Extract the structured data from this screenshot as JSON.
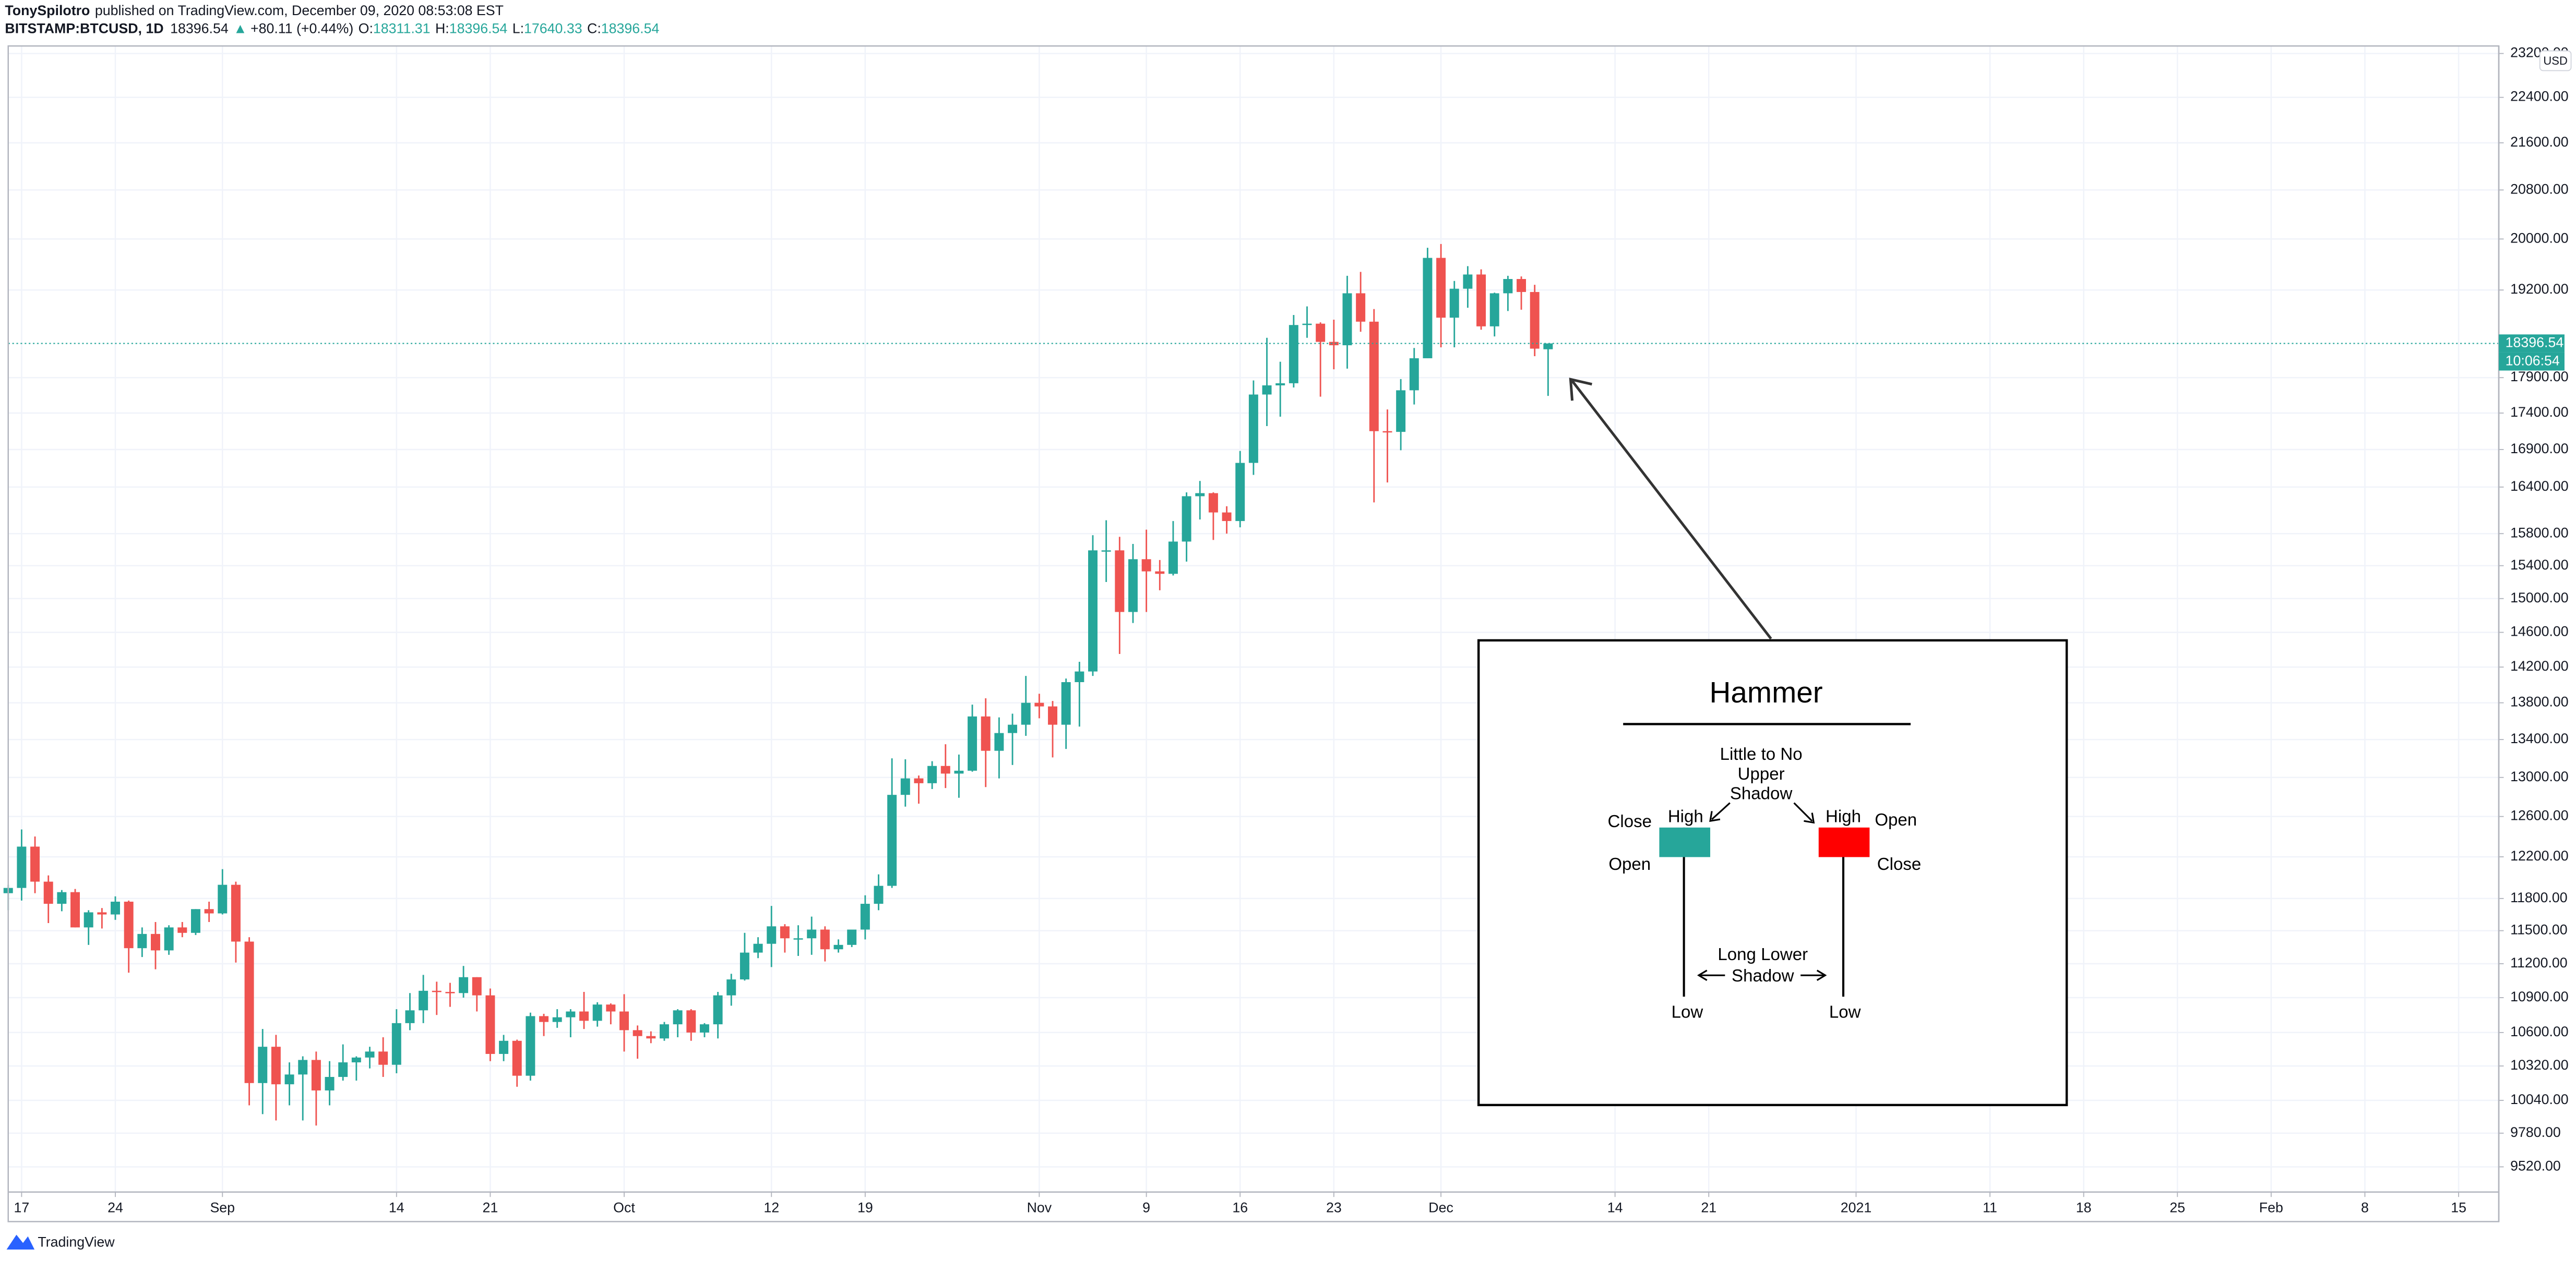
{
  "header": {
    "author": "TonySpilotro",
    "published": "published on TradingView.com, December 09, 2020 08:53:08 EST",
    "symbol": "BITSTAMP:BTCUSD, 1D",
    "arrow": "▲",
    "change": "+80.11 (+0.44%)",
    "o": "O:",
    "h": "H:",
    "l": "L:",
    "c": "C:",
    "countdown": "10:06:54",
    "currency": "USD",
    "brand": "TradingView"
  },
  "chart_data": {
    "type": "candlestick",
    "log_scale": true,
    "grid": true,
    "up_color": "#26a69a",
    "down_color": "#ef5350",
    "x": [
      "2020-08-16",
      "2020-08-17",
      "2020-08-18",
      "2020-08-19",
      "2020-08-20",
      "2020-08-21",
      "2020-08-22",
      "2020-08-23",
      "2020-08-24",
      "2020-08-25",
      "2020-08-26",
      "2020-08-27",
      "2020-08-28",
      "2020-08-29",
      "2020-08-30",
      "2020-08-31",
      "2020-09-01",
      "2020-09-02",
      "2020-09-03",
      "2020-09-04",
      "2020-09-05",
      "2020-09-06",
      "2020-09-07",
      "2020-09-08",
      "2020-09-09",
      "2020-09-10",
      "2020-09-11",
      "2020-09-12",
      "2020-09-13",
      "2020-09-14",
      "2020-09-15",
      "2020-09-16",
      "2020-09-17",
      "2020-09-18",
      "2020-09-19",
      "2020-09-20",
      "2020-09-21",
      "2020-09-22",
      "2020-09-23",
      "2020-09-24",
      "2020-09-25",
      "2020-09-26",
      "2020-09-27",
      "2020-09-28",
      "2020-09-29",
      "2020-09-30",
      "2020-10-01",
      "2020-10-02",
      "2020-10-03",
      "2020-10-04",
      "2020-10-05",
      "2020-10-06",
      "2020-10-07",
      "2020-10-08",
      "2020-10-09",
      "2020-10-10",
      "2020-10-11",
      "2020-10-12",
      "2020-10-13",
      "2020-10-14",
      "2020-10-15",
      "2020-10-16",
      "2020-10-17",
      "2020-10-18",
      "2020-10-19",
      "2020-10-20",
      "2020-10-21",
      "2020-10-22",
      "2020-10-23",
      "2020-10-24",
      "2020-10-25",
      "2020-10-26",
      "2020-10-27",
      "2020-10-28",
      "2020-10-29",
      "2020-10-30",
      "2020-10-31",
      "2020-11-01",
      "2020-11-02",
      "2020-11-03",
      "2020-11-04",
      "2020-11-05",
      "2020-11-06",
      "2020-11-07",
      "2020-11-08",
      "2020-11-09",
      "2020-11-10",
      "2020-11-11",
      "2020-11-12",
      "2020-11-13",
      "2020-11-14",
      "2020-11-15",
      "2020-11-16",
      "2020-11-17",
      "2020-11-18",
      "2020-11-19",
      "2020-11-20",
      "2020-11-21",
      "2020-11-22",
      "2020-11-23",
      "2020-11-24",
      "2020-11-25",
      "2020-11-26",
      "2020-11-27",
      "2020-11-28",
      "2020-11-29",
      "2020-11-30",
      "2020-12-01",
      "2020-12-02",
      "2020-12-03",
      "2020-12-04",
      "2020-12-05",
      "2020-12-06",
      "2020-12-07",
      "2020-12-08",
      "2020-12-09"
    ],
    "open": [
      11850,
      11900,
      12300,
      11960,
      11750,
      11860,
      11530,
      11670,
      11650,
      11770,
      11340,
      11470,
      11320,
      11530,
      11480,
      11700,
      11660,
      11930,
      11400,
      10180,
      10480,
      10170,
      10250,
      10370,
      10120,
      10230,
      10350,
      10390,
      10440,
      10330,
      10680,
      10790,
      10960,
      10950,
      10940,
      11080,
      10920,
      10420,
      10530,
      10240,
      10740,
      10690,
      10730,
      10780,
      10700,
      10840,
      10780,
      10620,
      10570,
      10550,
      10670,
      10790,
      10600,
      10670,
      10920,
      11060,
      11300,
      11380,
      11540,
      11430,
      11430,
      11510,
      11330,
      11370,
      11510,
      11750,
      11920,
      12820,
      12990,
      12940,
      13120,
      13040,
      13070,
      13650,
      13280,
      13470,
      13560,
      13800,
      13760,
      13560,
      14030,
      14150,
      15590,
      15590,
      14840,
      15480,
      15330,
      15300,
      15700,
      16280,
      16320,
      16070,
      15960,
      16720,
      17660,
      17790,
      17820,
      18670,
      18690,
      18420,
      18370,
      19150,
      18720,
      17150,
      17140,
      17720,
      18180,
      19700,
      18780,
      19220,
      19440,
      18650,
      19150,
      19370,
      19170,
      18311.31
    ],
    "high": [
      11930,
      12470,
      12400,
      12020,
      11880,
      11890,
      11690,
      11710,
      11820,
      11780,
      11530,
      11580,
      11550,
      11580,
      11700,
      11770,
      12080,
      11960,
      11440,
      10630,
      10580,
      10350,
      10400,
      10440,
      10360,
      10500,
      10400,
      10480,
      10560,
      10800,
      10940,
      11100,
      11040,
      11030,
      11180,
      11080,
      10980,
      10580,
      10540,
      10770,
      10760,
      10800,
      10800,
      10950,
      10860,
      10850,
      10930,
      10660,
      10610,
      10690,
      10800,
      10800,
      10680,
      10950,
      11110,
      11480,
      11440,
      11730,
      11560,
      11550,
      11630,
      11540,
      11420,
      11500,
      11830,
      12030,
      13200,
      13190,
      13020,
      13170,
      13350,
      13240,
      13780,
      13850,
      13640,
      13680,
      14100,
      13900,
      13820,
      14070,
      14260,
      15780,
      15970,
      15760,
      15670,
      15850,
      15470,
      15960,
      16330,
      16480,
      16330,
      16150,
      16880,
      17860,
      18480,
      18130,
      18820,
      18950,
      18710,
      18750,
      19420,
      19480,
      18910,
      17450,
      17880,
      18330,
      19860,
      19920,
      19340,
      19570,
      19520,
      19160,
      19420,
      19410,
      19280,
      18396.54
    ],
    "low": [
      11690,
      11780,
      11850,
      11570,
      11680,
      11530,
      11370,
      11520,
      11600,
      11120,
      11260,
      11150,
      11280,
      11440,
      11460,
      11580,
      11650,
      11210,
      10000,
      9930,
      9880,
      10000,
      9880,
      9840,
      10000,
      10200,
      10200,
      10300,
      10230,
      10260,
      10620,
      10680,
      10750,
      10820,
      10900,
      10780,
      10360,
      10360,
      10150,
      10200,
      10570,
      10640,
      10560,
      10630,
      10650,
      10670,
      10440,
      10380,
      10510,
      10530,
      10560,
      10530,
      10560,
      10550,
      10830,
      11050,
      11250,
      11170,
      11300,
      11270,
      11280,
      11220,
      11300,
      11350,
      11420,
      11690,
      11900,
      12700,
      12730,
      12880,
      12890,
      12790,
      13060,
      12900,
      12990,
      13130,
      13440,
      13630,
      13210,
      13300,
      13540,
      14100,
      15200,
      14350,
      14710,
      14840,
      15100,
      15280,
      15450,
      15980,
      15720,
      15800,
      15880,
      16560,
      17220,
      17350,
      17760,
      18480,
      17630,
      18020,
      18030,
      18570,
      16200,
      16460,
      16890,
      17520,
      18180,
      18340,
      18340,
      18930,
      18600,
      18500,
      18880,
      18900,
      18210,
      17640.33
    ],
    "close": [
      11900,
      12300,
      11960,
      11750,
      11860,
      11530,
      11670,
      11650,
      11770,
      11340,
      11470,
      11320,
      11530,
      11480,
      11700,
      11660,
      11930,
      11400,
      10180,
      10480,
      10170,
      10250,
      10370,
      10120,
      10230,
      10350,
      10390,
      10440,
      10330,
      10680,
      10790,
      10960,
      10950,
      10940,
      11080,
      10920,
      10420,
      10530,
      10240,
      10740,
      10690,
      10730,
      10780,
      10700,
      10840,
      10780,
      10620,
      10570,
      10550,
      10670,
      10790,
      10600,
      10670,
      10920,
      11060,
      11300,
      11380,
      11540,
      11430,
      11430,
      11510,
      11330,
      11370,
      11510,
      11750,
      11920,
      12820,
      12990,
      12940,
      13120,
      13040,
      13070,
      13650,
      13280,
      13470,
      13560,
      13800,
      13760,
      13560,
      14030,
      14150,
      15590,
      15590,
      14840,
      15480,
      15330,
      15300,
      15700,
      16280,
      16320,
      16070,
      15960,
      16720,
      17660,
      17790,
      17820,
      18670,
      18690,
      18420,
      18370,
      19150,
      18720,
      17150,
      17140,
      17720,
      18180,
      19700,
      18780,
      19220,
      19440,
      18650,
      19150,
      19370,
      19170,
      18320,
      18396.54
    ],
    "xlim": [
      "2020-08-16",
      "2021-02-18"
    ],
    "xticks": [
      {
        "value": "2020-08-17",
        "label": "17"
      },
      {
        "value": "2020-08-24",
        "label": "24"
      },
      {
        "value": "2020-09-01",
        "label": "Sep"
      },
      {
        "value": "2020-09-14",
        "label": "14"
      },
      {
        "value": "2020-09-21",
        "label": "21"
      },
      {
        "value": "2020-10-01",
        "label": "Oct"
      },
      {
        "value": "2020-10-12",
        "label": "12"
      },
      {
        "value": "2020-10-19",
        "label": "19"
      },
      {
        "value": "2020-11-01",
        "label": "Nov"
      },
      {
        "value": "2020-11-09",
        "label": "9"
      },
      {
        "value": "2020-11-16",
        "label": "16"
      },
      {
        "value": "2020-11-23",
        "label": "23"
      },
      {
        "value": "2020-12-01",
        "label": "Dec"
      },
      {
        "value": "2020-12-14",
        "label": "14"
      },
      {
        "value": "2020-12-21",
        "label": "21"
      },
      {
        "value": "2021-01-01",
        "label": "2021"
      },
      {
        "value": "2021-01-11",
        "label": "11"
      },
      {
        "value": "2021-01-18",
        "label": "18"
      },
      {
        "value": "2021-01-25",
        "label": "25"
      },
      {
        "value": "2021-02-01",
        "label": "Feb"
      },
      {
        "value": "2021-02-08",
        "label": "8"
      },
      {
        "value": "2021-02-15",
        "label": "15"
      }
    ],
    "ylim": [
      9330,
      23340
    ],
    "yticks": [
      {
        "value": 9520,
        "label": "9520.00"
      },
      {
        "value": 9780,
        "label": "9780.00"
      },
      {
        "value": 10040,
        "label": "10040.00"
      },
      {
        "value": 10320,
        "label": "10320.00"
      },
      {
        "value": 10600,
        "label": "10600.00"
      },
      {
        "value": 10900,
        "label": "10900.00"
      },
      {
        "value": 11200,
        "label": "11200.00"
      },
      {
        "value": 11500,
        "label": "11500.00"
      },
      {
        "value": 11800,
        "label": "11800.00"
      },
      {
        "value": 12200,
        "label": "12200.00"
      },
      {
        "value": 12600,
        "label": "12600.00"
      },
      {
        "value": 13000,
        "label": "13000.00"
      },
      {
        "value": 13400,
        "label": "13400.00"
      },
      {
        "value": 13800,
        "label": "13800.00"
      },
      {
        "value": 14200,
        "label": "14200.00"
      },
      {
        "value": 14600,
        "label": "14600.00"
      },
      {
        "value": 15000,
        "label": "15000.00"
      },
      {
        "value": 15400,
        "label": "15400.00"
      },
      {
        "value": 15800,
        "label": "15800.00"
      },
      {
        "value": 16400,
        "label": "16400.00"
      },
      {
        "value": 16900,
        "label": "16900.00"
      },
      {
        "value": 17400,
        "label": "17400.00"
      },
      {
        "value": 17900,
        "label": "17900.00"
      },
      {
        "value": 19200,
        "label": "19200.00"
      },
      {
        "value": 20000,
        "label": "20000.00"
      },
      {
        "value": 20800,
        "label": "20800.00"
      },
      {
        "value": 21600,
        "label": "21600.00"
      },
      {
        "value": 22400,
        "label": "22400.00"
      },
      {
        "value": 23200,
        "label": "23200.00"
      }
    ],
    "annotation": {
      "title": "Hammer",
      "upper_1": "Little to No",
      "upper_2": "Upper",
      "upper_3": "Shadow",
      "close_left": "Close",
      "high_left": "High",
      "open_left": "Open",
      "high_right": "High",
      "open_right": "Open",
      "close_right": "Close",
      "lower_1": "Long Lower",
      "lower_2": "Shadow",
      "low_left": "Low",
      "low_right": "Low"
    }
  }
}
